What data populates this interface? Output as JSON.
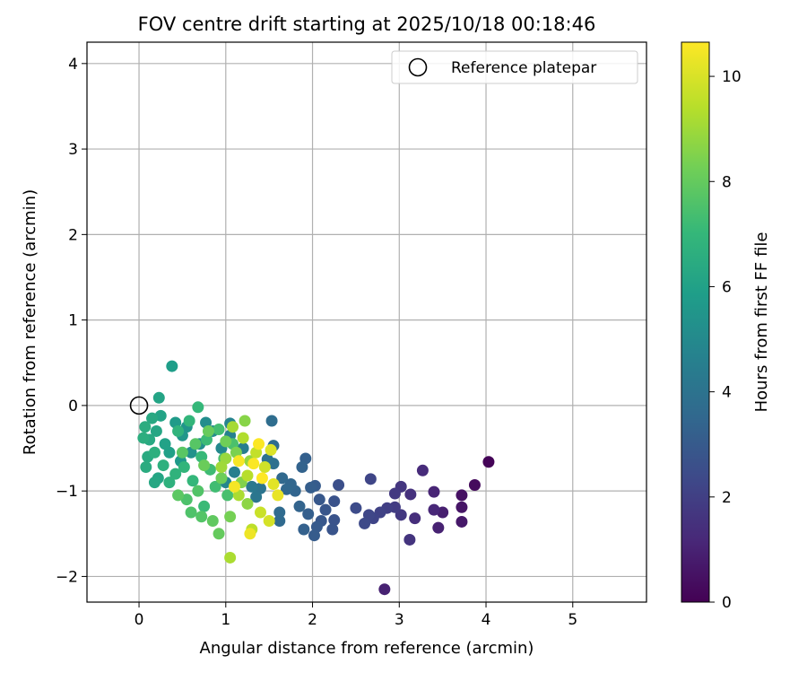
{
  "chart_data": {
    "type": "scatter",
    "title": "FOV centre drift starting at 2025/10/18 00:18:46",
    "xlabel": "Angular distance from reference (arcmin)",
    "ylabel": "Rotation from reference (arcmin)",
    "xlim": [
      -0.6,
      5.85
    ],
    "ylim": [
      -2.3,
      4.25
    ],
    "xticks": [
      0,
      1,
      2,
      3,
      4,
      5
    ],
    "yticks": [
      -2,
      -1,
      0,
      1,
      2,
      3,
      4
    ],
    "xtick_labels": [
      "0",
      "1",
      "2",
      "3",
      "4",
      "5"
    ],
    "ytick_labels": [
      "−2",
      "−1",
      "0",
      "1",
      "2",
      "3",
      "4"
    ],
    "grid": true,
    "legend": {
      "placement": "upper right",
      "entries": [
        "Reference platepar"
      ]
    },
    "reference_point": {
      "x": 0,
      "y": 0,
      "label": "Reference platepar"
    },
    "colorbar": {
      "label": "Hours from first FF file",
      "colormap": "viridis",
      "range": [
        0,
        10.65
      ],
      "ticks": [
        0,
        2,
        4,
        6,
        8,
        10
      ],
      "tick_labels": [
        "0",
        "2",
        "4",
        "6",
        "8",
        "10"
      ],
      "colors": [
        "#440154",
        "#482878",
        "#3e4989",
        "#31688e",
        "#26828e",
        "#1f9e89",
        "#35b779",
        "#6ece58",
        "#b5de2b",
        "#fde725"
      ]
    },
    "series": [
      {
        "points": [
          [
            4.03,
            -0.66,
            0.1
          ],
          [
            3.87,
            -0.93,
            0.3
          ],
          [
            3.72,
            -1.05,
            0.5
          ],
          [
            3.72,
            -1.19,
            0.6
          ],
          [
            3.72,
            -1.36,
            0.7
          ],
          [
            3.5,
            -1.25,
            0.9
          ],
          [
            3.45,
            -1.43,
            1.0
          ],
          [
            3.4,
            -1.01,
            1.1
          ],
          [
            3.4,
            -1.22,
            1.2
          ],
          [
            3.27,
            -0.76,
            1.3
          ],
          [
            3.18,
            -1.32,
            1.4
          ],
          [
            3.13,
            -1.04,
            1.5
          ],
          [
            3.12,
            -1.57,
            1.6
          ],
          [
            3.02,
            -0.95,
            1.7
          ],
          [
            3.02,
            -1.28,
            1.75
          ],
          [
            2.95,
            -1.03,
            1.8
          ],
          [
            2.95,
            -1.19,
            1.9
          ],
          [
            2.86,
            -1.2,
            2.0
          ],
          [
            2.83,
            -2.15,
            1.0
          ],
          [
            2.78,
            -1.25,
            2.1
          ],
          [
            2.7,
            -1.32,
            2.2
          ],
          [
            2.67,
            -0.86,
            2.25
          ],
          [
            2.65,
            -1.28,
            2.3
          ],
          [
            2.6,
            -1.38,
            2.4
          ],
          [
            2.5,
            -1.2,
            2.5
          ],
          [
            2.3,
            -0.93,
            2.6
          ],
          [
            2.25,
            -1.12,
            2.7
          ],
          [
            2.25,
            -1.34,
            2.75
          ],
          [
            2.23,
            -1.45,
            2.8
          ],
          [
            2.15,
            -1.22,
            2.85
          ],
          [
            2.1,
            -1.35,
            2.9
          ],
          [
            2.08,
            -1.1,
            2.95
          ],
          [
            2.05,
            -1.42,
            3.0
          ],
          [
            2.03,
            -0.94,
            3.05
          ],
          [
            2.02,
            -1.52,
            3.1
          ],
          [
            1.98,
            -0.96,
            3.15
          ],
          [
            1.95,
            -1.27,
            3.2
          ],
          [
            1.92,
            -0.62,
            3.25
          ],
          [
            1.9,
            -1.45,
            3.3
          ],
          [
            1.88,
            -0.72,
            3.35
          ],
          [
            1.85,
            -1.18,
            3.4
          ],
          [
            1.8,
            -1.0,
            3.45
          ],
          [
            1.75,
            -0.92,
            3.5
          ],
          [
            1.7,
            -0.98,
            3.55
          ],
          [
            1.65,
            -0.85,
            3.6
          ],
          [
            1.62,
            -1.35,
            3.65
          ],
          [
            1.62,
            -1.25,
            3.7
          ],
          [
            1.55,
            -0.47,
            3.75
          ],
          [
            1.53,
            -0.18,
            3.8
          ],
          [
            1.55,
            -0.68,
            3.9
          ],
          [
            1.48,
            -0.63,
            4.0
          ],
          [
            1.4,
            -0.97,
            4.1
          ],
          [
            1.35,
            -1.07,
            4.2
          ],
          [
            1.3,
            -0.95,
            4.3
          ],
          [
            1.2,
            -0.5,
            4.5
          ],
          [
            1.1,
            -0.78,
            4.6
          ],
          [
            1.05,
            -0.35,
            4.7
          ],
          [
            1.05,
            -0.21,
            4.8
          ],
          [
            1.0,
            -0.9,
            4.9
          ],
          [
            0.95,
            -0.5,
            5.0
          ],
          [
            0.85,
            -0.3,
            5.1
          ],
          [
            0.77,
            -0.2,
            5.2
          ],
          [
            0.7,
            -0.45,
            5.3
          ],
          [
            0.6,
            -0.55,
            5.4
          ],
          [
            0.55,
            -0.25,
            5.5
          ],
          [
            0.5,
            -0.35,
            5.6
          ],
          [
            0.48,
            -0.65,
            5.7
          ],
          [
            0.42,
            -0.2,
            5.8
          ],
          [
            0.38,
            0.46,
            5.9
          ],
          [
            0.35,
            -0.55,
            6.0
          ],
          [
            0.3,
            -0.45,
            6.1
          ],
          [
            0.25,
            -0.12,
            6.15
          ],
          [
            0.23,
            0.09,
            6.2
          ],
          [
            0.22,
            -0.85,
            6.25
          ],
          [
            0.2,
            -0.3,
            6.3
          ],
          [
            0.18,
            -0.9,
            6.35
          ],
          [
            0.15,
            -0.15,
            6.4
          ],
          [
            0.12,
            -0.4,
            6.45
          ],
          [
            0.1,
            -0.6,
            6.5
          ],
          [
            0.08,
            -0.72,
            6.55
          ],
          [
            0.07,
            -0.25,
            6.6
          ],
          [
            0.05,
            -0.38,
            6.65
          ],
          [
            0.18,
            -0.55,
            6.7
          ],
          [
            0.28,
            -0.7,
            6.75
          ],
          [
            0.35,
            -0.9,
            6.8
          ],
          [
            0.42,
            -0.8,
            6.85
          ],
          [
            0.45,
            -0.3,
            6.9
          ],
          [
            0.52,
            -0.72,
            6.95
          ],
          [
            0.58,
            -0.18,
            7.0
          ],
          [
            0.62,
            -0.88,
            7.05
          ],
          [
            0.68,
            -0.02,
            7.1
          ],
          [
            0.72,
            -0.6,
            7.15
          ],
          [
            0.75,
            -1.18,
            7.2
          ],
          [
            0.78,
            -0.4,
            7.25
          ],
          [
            0.82,
            -0.75,
            7.3
          ],
          [
            0.88,
            -0.95,
            7.35
          ],
          [
            0.92,
            -0.28,
            7.4
          ],
          [
            0.98,
            -0.62,
            7.45
          ],
          [
            1.02,
            -1.05,
            7.5
          ],
          [
            1.08,
            -0.45,
            7.55
          ],
          [
            0.55,
            -1.1,
            7.6
          ],
          [
            0.6,
            -1.25,
            7.65
          ],
          [
            0.68,
            -1.0,
            7.7
          ],
          [
            0.72,
            -1.3,
            7.75
          ],
          [
            0.65,
            -0.45,
            7.8
          ],
          [
            0.5,
            -0.55,
            7.85
          ],
          [
            0.45,
            -1.05,
            7.9
          ],
          [
            0.85,
            -1.35,
            8.0
          ],
          [
            0.92,
            -1.5,
            8.1
          ],
          [
            0.8,
            -0.3,
            8.15
          ],
          [
            0.75,
            -0.7,
            8.2
          ],
          [
            0.95,
            -0.85,
            8.25
          ],
          [
            1.0,
            -0.42,
            8.3
          ],
          [
            1.05,
            -1.3,
            8.4
          ],
          [
            1.12,
            -0.55,
            8.5
          ],
          [
            1.18,
            -0.9,
            8.6
          ],
          [
            1.22,
            -0.18,
            8.7
          ],
          [
            1.25,
            -1.15,
            8.8
          ],
          [
            1.28,
            -0.65,
            8.9
          ],
          [
            1.0,
            -0.62,
            9.0
          ],
          [
            0.95,
            -0.72,
            9.1
          ],
          [
            1.08,
            -0.25,
            9.2
          ],
          [
            1.15,
            -1.05,
            9.3
          ],
          [
            1.2,
            -0.38,
            9.4
          ],
          [
            1.25,
            -0.82,
            9.5
          ],
          [
            1.3,
            -1.45,
            9.6
          ],
          [
            1.35,
            -0.55,
            9.7
          ],
          [
            1.4,
            -1.25,
            9.8
          ],
          [
            1.45,
            -0.72,
            9.9
          ],
          [
            1.5,
            -1.35,
            10.0
          ],
          [
            1.52,
            -0.52,
            10.1
          ],
          [
            1.55,
            -0.92,
            10.2
          ],
          [
            1.6,
            -1.05,
            10.3
          ],
          [
            1.28,
            -1.5,
            10.4
          ],
          [
            1.05,
            -1.78,
            9.3
          ],
          [
            1.1,
            -0.95,
            10.5
          ],
          [
            1.15,
            -0.65,
            10.55
          ],
          [
            1.32,
            -0.68,
            10.6
          ],
          [
            1.38,
            -0.45,
            10.62
          ],
          [
            1.42,
            -0.85,
            10.65
          ]
        ]
      }
    ]
  }
}
